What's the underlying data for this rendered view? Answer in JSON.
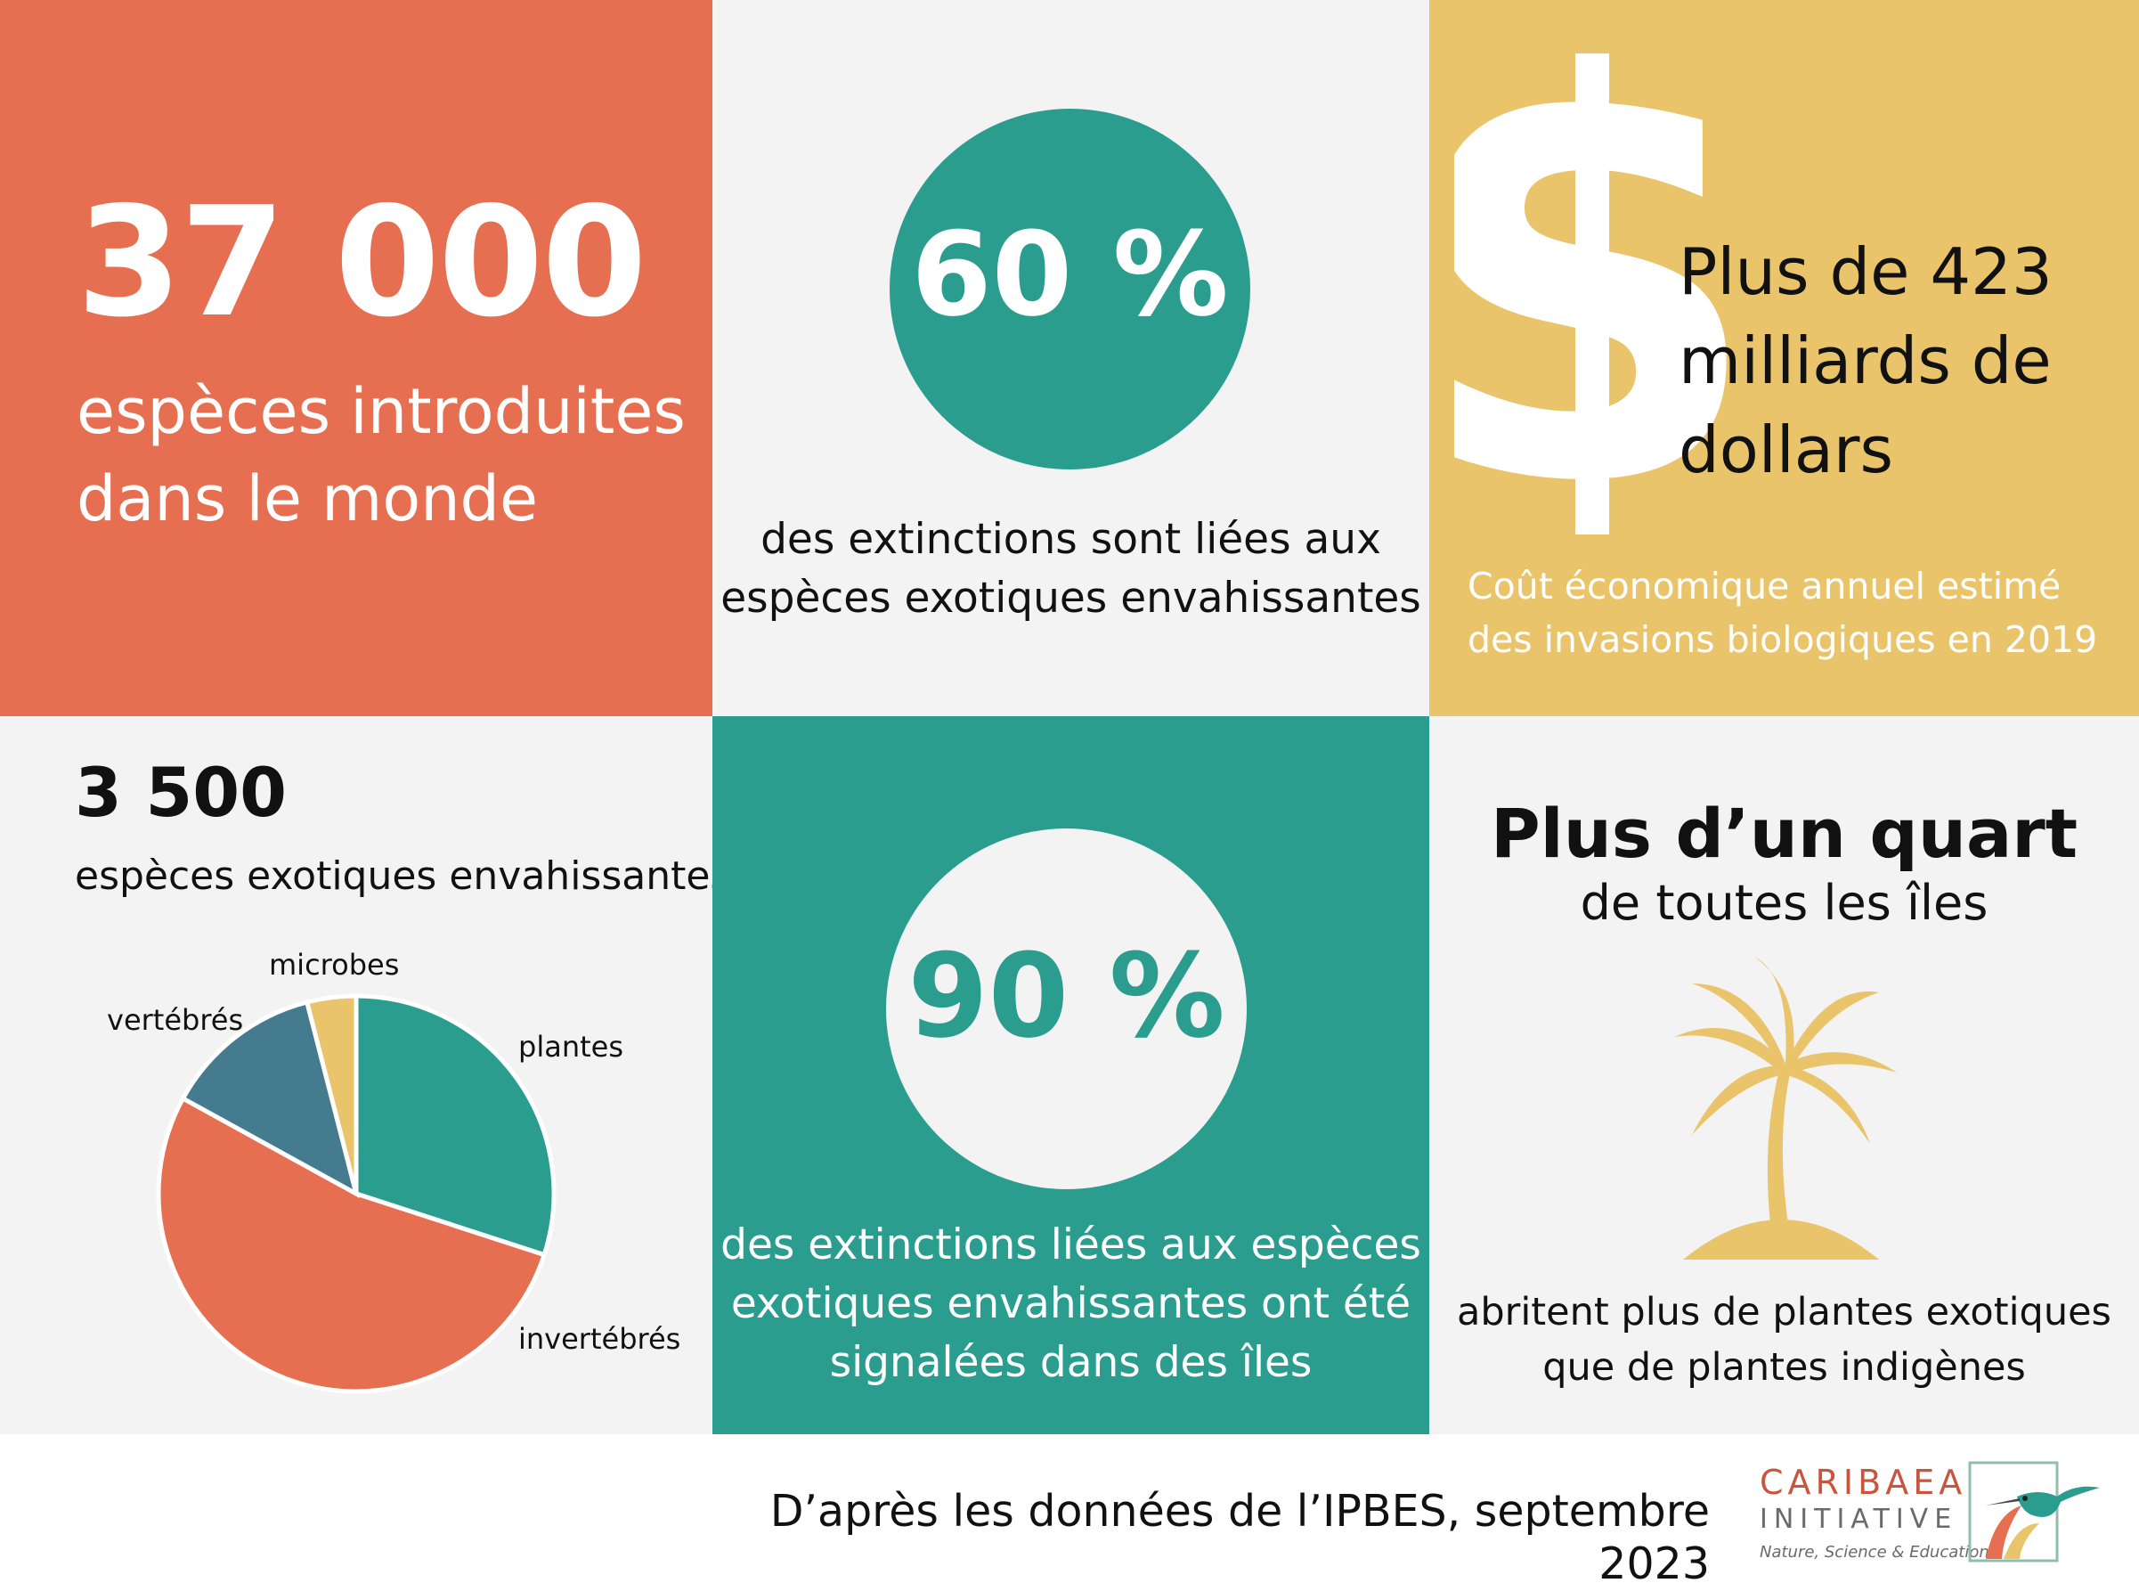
{
  "tile1": {
    "number": "37 000",
    "line1": "espèces introduites",
    "line2": "dans le monde"
  },
  "tile2": {
    "percent": "60 %",
    "line1": "des extinctions sont liées aux",
    "line2": "espèces exotiques envahissantes"
  },
  "tile3": {
    "icon": "dollar-sign-icon",
    "headline1": "Plus de 423",
    "headline2": "milliards de",
    "headline3": "dollars",
    "caption1": "Coût économique annuel estimé",
    "caption2": "des invasions biologiques en 2019"
  },
  "tile4": {
    "number": "3 500",
    "subtitle": "espèces exotiques envahissantes"
  },
  "chart_data": {
    "type": "pie",
    "labels": [
      "plantes",
      "invertébrés",
      "vertébrés",
      "microbes"
    ],
    "values": [
      30,
      53,
      13,
      4
    ],
    "colors": [
      "#2a9d8f",
      "#e76f51",
      "#457b8f",
      "#e9c46a"
    ]
  },
  "tile5": {
    "percent": "90 %",
    "line1": "des extinctions liées aux espèces",
    "line2": "exotiques envahissantes ont été",
    "line3": "signalées dans des îles"
  },
  "tile6": {
    "headline": "Plus d’un quart",
    "subline": "de toutes les îles",
    "icon": "palm-tree-icon",
    "line1": "abritent plus de plantes exotiques",
    "line2": "que de plantes indigènes"
  },
  "footer": {
    "source": "D’après les données de l’IPBES, septembre 2023",
    "logo_name": "CARIBAEA",
    "logo_initiative": "INITIATIVE",
    "logo_tagline": "Nature, Science & Education"
  },
  "colors": {
    "coral": "#e76f51",
    "teal": "#2a9d8f",
    "sand": "#e9c46a",
    "slate": "#457b8f",
    "light": "#f3f3f3"
  }
}
